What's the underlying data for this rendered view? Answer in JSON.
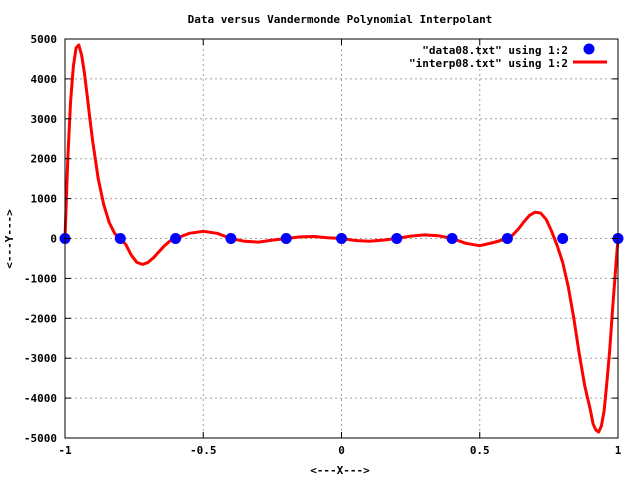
{
  "chart_data": {
    "type": "line",
    "title": "Data versus Vandermonde Polynomial Interpolant",
    "xlabel": "<---X--->",
    "ylabel": "<---Y--->",
    "xlim": [
      -1,
      1
    ],
    "ylim": [
      -5000,
      5000
    ],
    "x_ticks": [
      -1,
      -0.5,
      0,
      0.5,
      1
    ],
    "x_tick_labels": [
      "-1",
      "-0.5",
      "0",
      "0.5",
      "1"
    ],
    "y_ticks": [
      -5000,
      -4000,
      -3000,
      -2000,
      -1000,
      0,
      1000,
      2000,
      3000,
      4000,
      5000
    ],
    "y_tick_labels": [
      "-5000",
      "-4000",
      "-3000",
      "-2000",
      "-1000",
      "0",
      "1000",
      "2000",
      "3000",
      "4000",
      "5000"
    ],
    "grid": true,
    "legend_position": "top-right",
    "series": [
      {
        "name": "\"data08.txt\" using 1:2",
        "style": "points",
        "color": "#0000ff",
        "x": [
          -1.0,
          -0.8,
          -0.6,
          -0.4,
          -0.2,
          0.0,
          0.2,
          0.4,
          0.6,
          0.8,
          1.0
        ],
        "y": [
          0,
          0,
          0,
          0,
          0,
          0,
          0,
          0,
          0,
          0,
          0
        ]
      },
      {
        "name": "\"interp08.txt\" using 1:2",
        "style": "line",
        "color": "#ff0000",
        "x": [
          -1.0,
          -0.99,
          -0.98,
          -0.97,
          -0.96,
          -0.95,
          -0.94,
          -0.93,
          -0.92,
          -0.91,
          -0.9,
          -0.88,
          -0.86,
          -0.84,
          -0.82,
          -0.8,
          -0.78,
          -0.76,
          -0.74,
          -0.72,
          -0.7,
          -0.68,
          -0.66,
          -0.64,
          -0.62,
          -0.6,
          -0.55,
          -0.5,
          -0.45,
          -0.4,
          -0.35,
          -0.3,
          -0.25,
          -0.2,
          -0.15,
          -0.1,
          -0.05,
          0.0,
          0.05,
          0.1,
          0.15,
          0.2,
          0.25,
          0.3,
          0.35,
          0.4,
          0.45,
          0.5,
          0.55,
          0.6,
          0.62,
          0.64,
          0.66,
          0.68,
          0.7,
          0.72,
          0.74,
          0.76,
          0.78,
          0.8,
          0.82,
          0.84,
          0.86,
          0.88,
          0.9,
          0.91,
          0.92,
          0.93,
          0.94,
          0.95,
          0.96,
          0.97,
          0.98,
          0.99,
          1.0
        ],
        "y": [
          0,
          2000,
          3400,
          4300,
          4780,
          4850,
          4600,
          4150,
          3600,
          3000,
          2450,
          1500,
          850,
          400,
          120,
          0,
          -150,
          -420,
          -600,
          -650,
          -600,
          -480,
          -330,
          -180,
          -60,
          0,
          130,
          180,
          130,
          0,
          -70,
          -90,
          -40,
          0,
          40,
          50,
          20,
          0,
          -50,
          -70,
          -40,
          0,
          60,
          90,
          70,
          0,
          -120,
          -180,
          -100,
          0,
          90,
          240,
          420,
          580,
          660,
          640,
          480,
          180,
          -180,
          -600,
          -1200,
          -2000,
          -2900,
          -3700,
          -4300,
          -4650,
          -4800,
          -4850,
          -4700,
          -4300,
          -3600,
          -2800,
          -1800,
          -900,
          0
        ]
      }
    ]
  }
}
